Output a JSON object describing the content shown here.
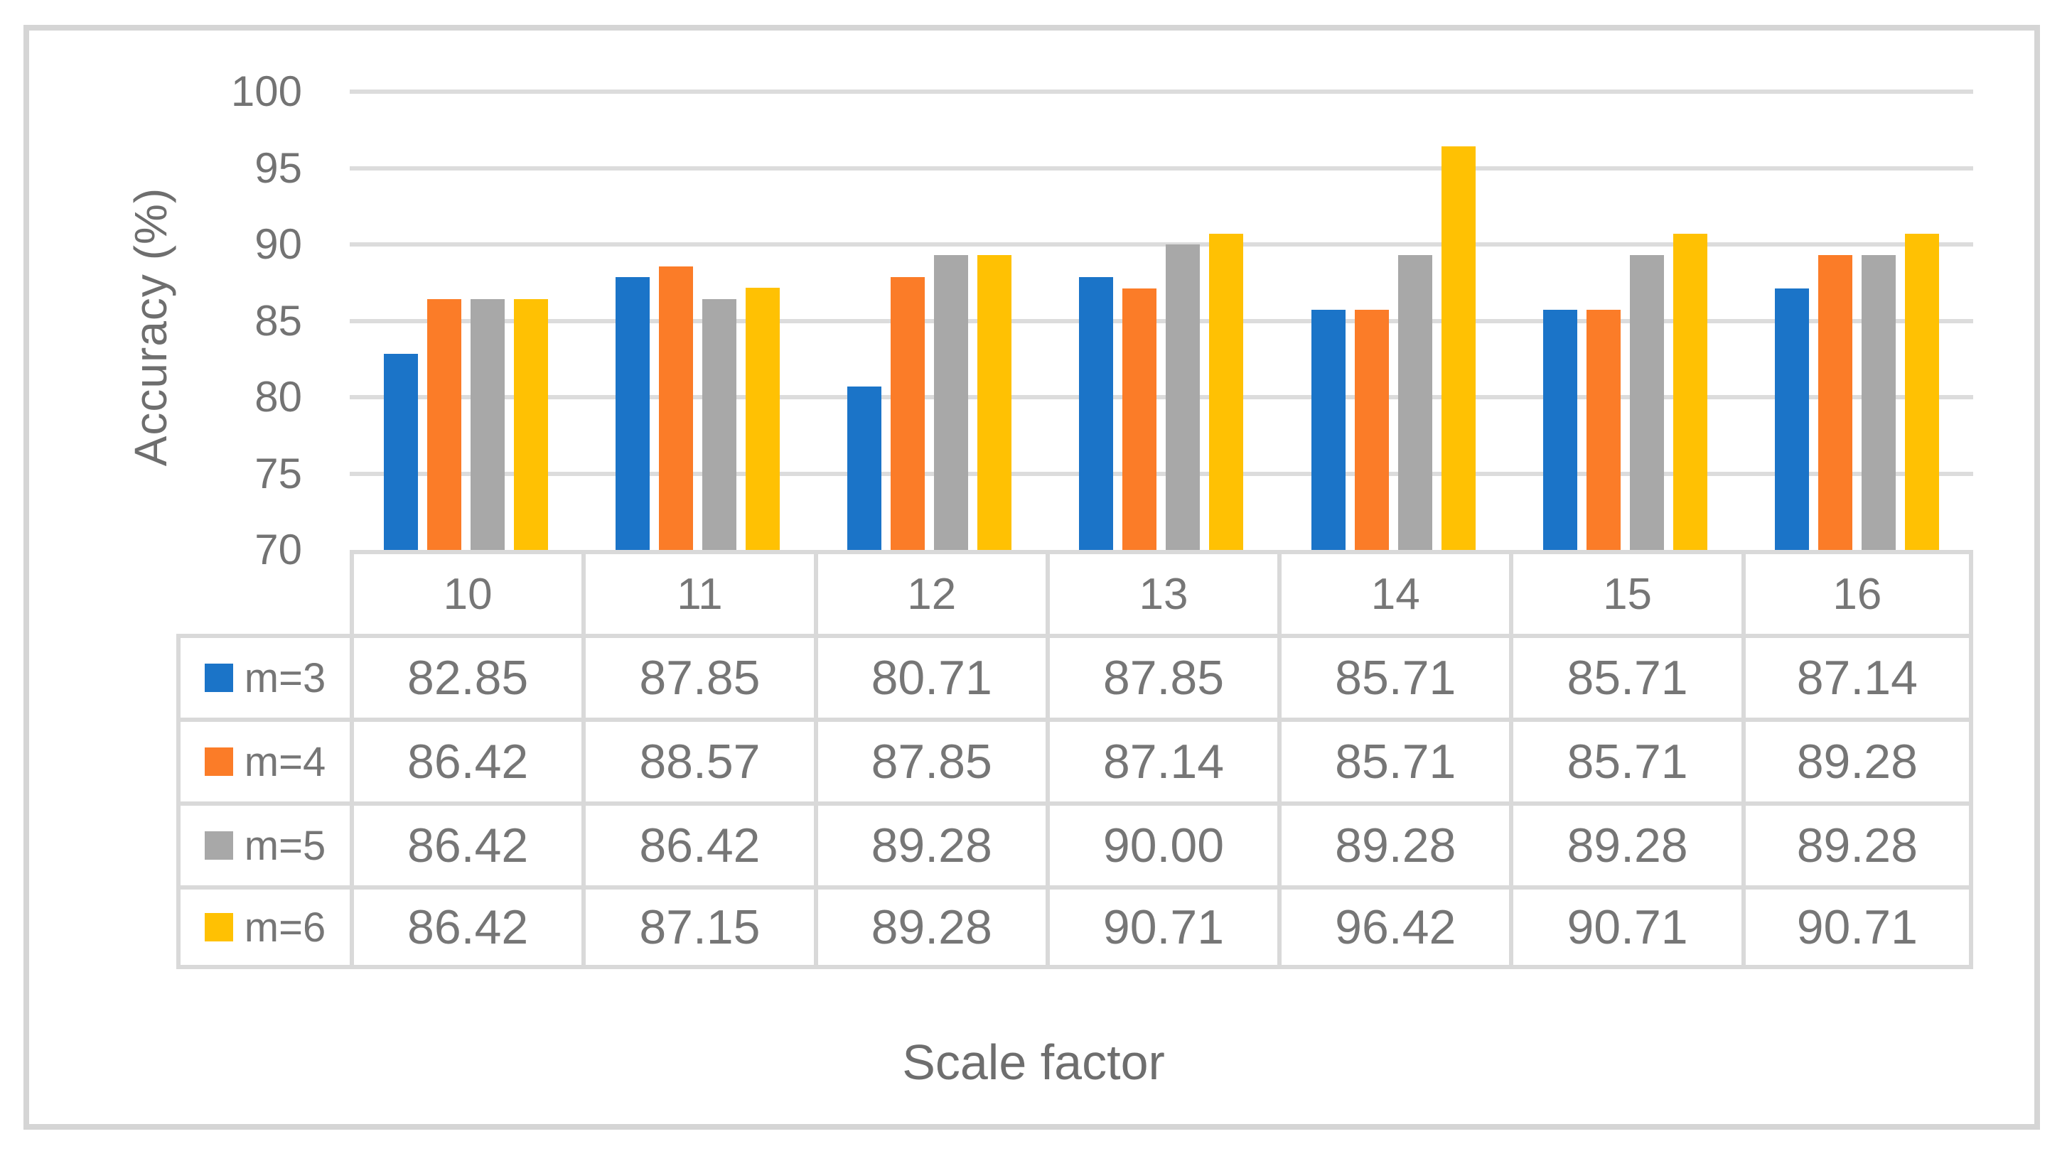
{
  "chart_data": {
    "type": "bar",
    "title": "",
    "xlabel": "Scale factor",
    "ylabel": "Accuracy (%)",
    "categories": [
      "10",
      "11",
      "12",
      "13",
      "14",
      "15",
      "16"
    ],
    "series": [
      {
        "name": "m=3",
        "color": "#1B74C8",
        "values": [
          "82.85",
          "87.85",
          "80.71",
          "87.85",
          "85.71",
          "85.71",
          "87.14"
        ]
      },
      {
        "name": "m=4",
        "color": "#FB7C28",
        "values": [
          "86.42",
          "88.57",
          "87.85",
          "87.14",
          "85.71",
          "85.71",
          "89.28"
        ]
      },
      {
        "name": "m=5",
        "color": "#A8A8A8",
        "values": [
          "86.42",
          "86.42",
          "89.28",
          "90.00",
          "89.28",
          "89.28",
          "89.28"
        ]
      },
      {
        "name": "m=6",
        "color": "#FFC103",
        "values": [
          "86.42",
          "87.15",
          "89.28",
          "90.71",
          "96.42",
          "90.71",
          "90.71"
        ]
      }
    ],
    "ylim": [
      70,
      100
    ],
    "yticks": [
      "100",
      "95",
      "90",
      "85",
      "80",
      "75",
      "70"
    ],
    "grid": true,
    "legend_position": "table-row-headers"
  },
  "palette": {
    "gridline": "#DCDCDC",
    "table_border": "#D9D9D9",
    "tick_text": "#737373",
    "table_text": "#767676",
    "axis_label_text": "#6E6E6E",
    "frame_border": "#D5D5D5",
    "background": "#FFFFFF"
  }
}
